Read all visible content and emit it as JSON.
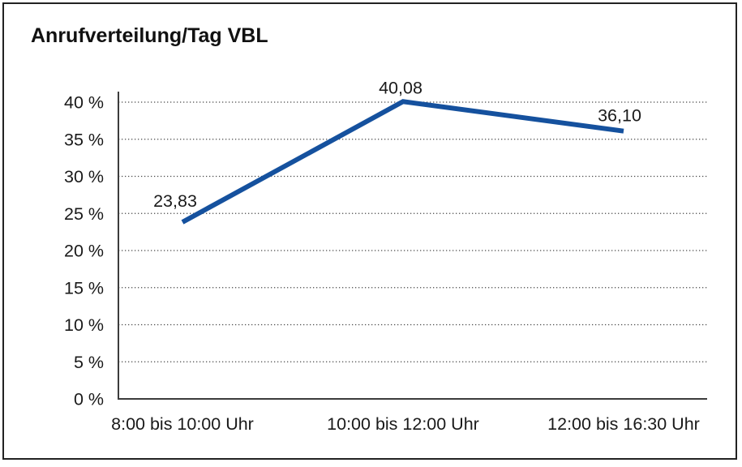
{
  "chart_data": {
    "type": "line",
    "title": "Anrufverteilung/Tag VBL",
    "categories": [
      "8:00 bis 10:00 Uhr",
      "10:00 bis 12:00 Uhr",
      "12:00 bis 16:30 Uhr"
    ],
    "values": [
      23.83,
      40.08,
      36.1
    ],
    "value_labels": [
      "23,83",
      "40,08",
      "36,10"
    ],
    "xlabel": "",
    "ylabel": "",
    "ylim": [
      0,
      40
    ],
    "y_ticks": [
      {
        "value": 0,
        "label": "0 %"
      },
      {
        "value": 5,
        "label": "5 %"
      },
      {
        "value": 10,
        "label": "10 %"
      },
      {
        "value": 15,
        "label": "15 %"
      },
      {
        "value": 20,
        "label": "20 %"
      },
      {
        "value": 25,
        "label": "25 %"
      },
      {
        "value": 30,
        "label": "30 %"
      },
      {
        "value": 35,
        "label": "35 %"
      },
      {
        "value": 40,
        "label": "40 %"
      }
    ],
    "grid": "horizontal-dotted",
    "legend": "none",
    "line_color": "#15519E",
    "text_color": "#1A1A1A",
    "frame_color": "#222222",
    "background_color": "#FFFFFF"
  }
}
